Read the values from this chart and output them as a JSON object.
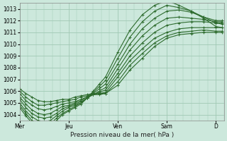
{
  "bg_color": "#cce8dc",
  "grid_color": "#a0c8b4",
  "line_color": "#2d6b2d",
  "title": "Pression niveau de la mer( hPa )",
  "ylim": [
    1003.5,
    1013.5
  ],
  "yticks": [
    1004,
    1005,
    1006,
    1007,
    1008,
    1009,
    1010,
    1011,
    1012,
    1013
  ],
  "x_day_labels": [
    "Mer",
    "Jeu",
    "Ven",
    "Sam",
    "D"
  ],
  "x_day_positions": [
    0,
    24,
    48,
    72,
    96
  ],
  "xlim": [
    0,
    100
  ],
  "series": [
    {
      "x": [
        0,
        3,
        6,
        9,
        12,
        15,
        18,
        21,
        24,
        27,
        30,
        33,
        36,
        39,
        42,
        48,
        54,
        60,
        66,
        72,
        78,
        84,
        90,
        96,
        99
      ],
      "y": [
        1006.2,
        1005.8,
        1005.5,
        1005.2,
        1005.1,
        1005.1,
        1005.2,
        1005.3,
        1005.3,
        1005.5,
        1005.6,
        1005.7,
        1005.8,
        1005.8,
        1005.8,
        1006.5,
        1007.8,
        1008.8,
        1009.8,
        1010.5,
        1010.8,
        1010.9,
        1011.0,
        1011.0,
        1011.0
      ]
    },
    {
      "x": [
        0,
        3,
        6,
        9,
        12,
        15,
        18,
        21,
        24,
        27,
        30,
        33,
        36,
        39,
        42,
        48,
        54,
        60,
        66,
        72,
        78,
        84,
        90,
        96,
        99
      ],
      "y": [
        1006.0,
        1005.5,
        1005.1,
        1004.8,
        1004.8,
        1004.9,
        1005.0,
        1005.1,
        1005.2,
        1005.3,
        1005.5,
        1005.6,
        1005.7,
        1005.7,
        1005.8,
        1006.8,
        1008.2,
        1009.2,
        1010.1,
        1010.7,
        1011.0,
        1011.1,
        1011.2,
        1011.1,
        1011.1
      ]
    },
    {
      "x": [
        0,
        3,
        6,
        9,
        12,
        15,
        18,
        21,
        24,
        27,
        30,
        33,
        36,
        39,
        42,
        48,
        54,
        60,
        66,
        72,
        78,
        84,
        90,
        96,
        99
      ],
      "y": [
        1005.8,
        1005.2,
        1004.8,
        1004.5,
        1004.4,
        1004.5,
        1004.7,
        1004.9,
        1005.0,
        1005.1,
        1005.3,
        1005.5,
        1005.7,
        1005.8,
        1005.9,
        1007.2,
        1008.6,
        1009.6,
        1010.5,
        1011.0,
        1011.3,
        1011.4,
        1011.4,
        1011.4,
        1011.4
      ]
    },
    {
      "x": [
        0,
        3,
        6,
        9,
        12,
        15,
        18,
        21,
        24,
        27,
        30,
        33,
        36,
        39,
        42,
        48,
        54,
        60,
        66,
        72,
        78,
        84,
        90,
        96,
        99
      ],
      "y": [
        1005.5,
        1004.9,
        1004.4,
        1004.1,
        1004.0,
        1004.1,
        1004.4,
        1004.7,
        1004.8,
        1005.0,
        1005.2,
        1005.5,
        1005.7,
        1005.9,
        1006.1,
        1007.5,
        1009.0,
        1010.1,
        1011.0,
        1011.6,
        1011.8,
        1011.9,
        1011.9,
        1011.8,
        1011.8
      ]
    },
    {
      "x": [
        0,
        3,
        6,
        9,
        12,
        15,
        18,
        21,
        24,
        27,
        30,
        33,
        36,
        39,
        42,
        48,
        54,
        60,
        66,
        72,
        78,
        84,
        90,
        96,
        99
      ],
      "y": [
        1005.3,
        1004.6,
        1004.1,
        1003.8,
        1003.7,
        1003.8,
        1004.1,
        1004.5,
        1004.7,
        1004.9,
        1005.1,
        1005.4,
        1005.7,
        1006.0,
        1006.3,
        1007.9,
        1009.5,
        1010.7,
        1011.6,
        1012.2,
        1012.3,
        1012.2,
        1012.1,
        1011.9,
        1011.9
      ]
    },
    {
      "x": [
        0,
        3,
        6,
        9,
        12,
        15,
        18,
        21,
        24,
        27,
        30,
        33,
        36,
        39,
        42,
        48,
        54,
        60,
        66,
        72,
        78,
        84,
        90,
        96,
        99
      ],
      "y": [
        1005.0,
        1004.3,
        1003.8,
        1003.5,
        1003.4,
        1003.5,
        1003.9,
        1004.3,
        1004.6,
        1004.8,
        1005.0,
        1005.4,
        1005.8,
        1006.2,
        1006.6,
        1008.3,
        1010.0,
        1011.3,
        1012.2,
        1012.8,
        1012.9,
        1012.7,
        1012.3,
        1012.0,
        1012.0
      ]
    },
    {
      "x": [
        0,
        3,
        6,
        9,
        12,
        15,
        18,
        21,
        24,
        27,
        30,
        33,
        36,
        39,
        42,
        48,
        54,
        60,
        66,
        72,
        78,
        84,
        90,
        96,
        99
      ],
      "y": [
        1004.8,
        1004.1,
        1003.5,
        1003.2,
        1003.1,
        1003.2,
        1003.7,
        1004.1,
        1004.4,
        1004.7,
        1005.0,
        1005.4,
        1005.9,
        1006.4,
        1006.9,
        1008.8,
        1010.6,
        1011.9,
        1012.8,
        1013.3,
        1013.1,
        1012.8,
        1012.3,
        1011.8,
        1011.7
      ]
    },
    {
      "x": [
        0,
        3,
        6,
        9,
        12,
        15,
        18,
        21,
        24,
        27,
        30,
        33,
        36,
        39,
        42,
        48,
        54,
        60,
        66,
        72,
        78,
        84,
        90,
        96,
        99
      ],
      "y": [
        1004.6,
        1003.9,
        1003.3,
        1003.0,
        1002.9,
        1003.0,
        1003.5,
        1004.0,
        1004.3,
        1004.6,
        1004.9,
        1005.4,
        1006.0,
        1006.6,
        1007.2,
        1009.3,
        1011.2,
        1012.5,
        1013.3,
        1013.7,
        1013.3,
        1012.8,
        1012.2,
        1011.5,
        1011.4
      ]
    }
  ]
}
